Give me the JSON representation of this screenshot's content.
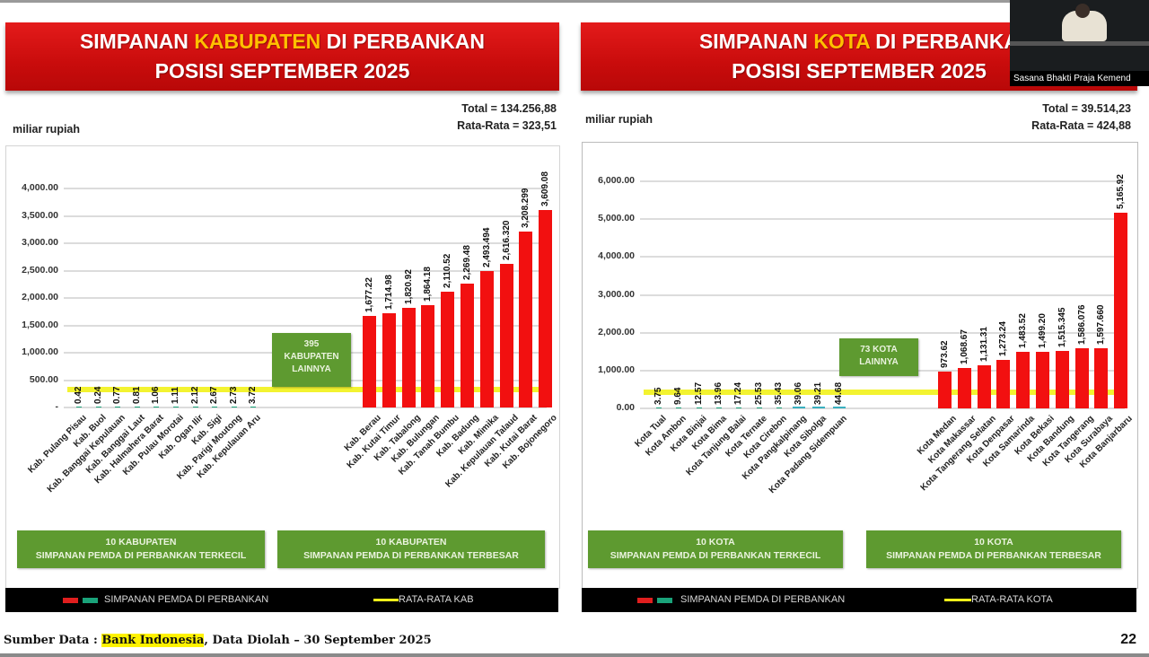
{
  "slide": {
    "page_number": "22",
    "footer": {
      "prefix": "Sumber Data : ",
      "source": "Bank Indonesia",
      "suffix": ", Data Diolah – 30 September 2025"
    },
    "webcam": {
      "caption": "Sasana Bhakti Praja Kemend"
    }
  },
  "left": {
    "title_pre": "SIMPANAN ",
    "title_hl": "KABUPATEN",
    "title_post": " DI PERBANKAN",
    "subtitle": "POSISI SEPTEMBER 2025",
    "total": "Total = 134.256,88",
    "average": "Rata-Rata = 323,51",
    "unit": "miliar rupiah",
    "middle_box": [
      "395",
      "KABUPATEN",
      "LAINNYA"
    ],
    "group_small": [
      "10 KABUPATEN",
      "SIMPANAN PEMDA DI PERBANKAN TERKECIL"
    ],
    "group_large": [
      "10 KABUPATEN",
      "SIMPANAN PEMDA DI PERBANKAN TERBESAR"
    ],
    "legend_series": "SIMPANAN PEMDA DI PERBANKAN",
    "legend_avg": "RATA-RATA KAB"
  },
  "right": {
    "title_pre": "SIMPANAN ",
    "title_hl": "KOTA",
    "title_post": " DI PERBANKA",
    "subtitle": "POSISI SEPTEMBER 2025",
    "total": "Total = 39.514,23",
    "average": "Rata-Rata = 424,88",
    "unit": "miliar rupiah",
    "middle_box": [
      "73 KOTA",
      "LAINNYA"
    ],
    "group_small": [
      "10 KOTA",
      "SIMPANAN PEMDA DI PERBANKAN TERKECIL"
    ],
    "group_large": [
      "10 KOTA",
      "SIMPANAN PEMDA DI PERBANKAN TERBESAR"
    ],
    "legend_series": "SIMPANAN PEMDA DI PERBANKAN",
    "legend_avg": "RATA-RATA KOTA"
  },
  "colors": {
    "banner_red": "#d41010",
    "title_highlight": "#ffc000",
    "bar_red": "#f21010",
    "bar_teal": "#1aa37a",
    "avg_yellow": "#f2f21a",
    "group_green": "#5e9a30",
    "legend_bg": "#000000"
  },
  "chart_data": [
    {
      "type": "bar",
      "title": "SIMPANAN KABUPATEN DI PERBANKAN POSISI SEPTEMBER 2025",
      "ylabel": "miliar rupiah",
      "ylim": [
        0,
        4000
      ],
      "yticks": [
        "",
        "500.00",
        "1,000.00",
        "1,500.00",
        "2,000.00",
        "2,500.00",
        "3,000.00",
        "3,500.00",
        "4,000.00"
      ],
      "grid": true,
      "legend": [
        "SIMPANAN PEMDA DI PERBANKAN",
        "RATA-RATA KAB"
      ],
      "legend_position": "bottom",
      "average_line": 323.51,
      "smallest": {
        "categories": [
          "Kab. Pulang Pisau",
          "Kab. Buol",
          "Kab. Banggai Kepulauan",
          "Kab. Banggai Laut",
          "Kab. Halmahera Barat",
          "Kab. Pulau Morotai",
          "Kab. Ogan Ilir",
          "Kab. Sigi",
          "Kab. Parigi Moutong",
          "Kab. Kepulauan Aru"
        ],
        "values": [
          0.42,
          0.24,
          0.77,
          0.81,
          1.06,
          1.11,
          2.12,
          2.67,
          2.73,
          3.72
        ],
        "labels": [
          "0.42",
          "0.24",
          "0.77",
          "0.81",
          "1.06",
          "1.11",
          "2.12",
          "2.67",
          "2.73",
          "3.72"
        ]
      },
      "largest": {
        "categories": [
          "Kab. Berau",
          "Kab. Kutai Timur",
          "Kab. Tabalong",
          "Kab. Bulungan",
          "Kab. Tanah Bumbu",
          "Kab. Badung",
          "Kab. Mimika",
          "Kab. Kepulauan Talaud",
          "Kab. Kutai Barat",
          "Kab. Bojonegoro"
        ],
        "values": [
          1677.22,
          1714.98,
          1820.92,
          1864.18,
          2110.52,
          2269.48,
          2493.494,
          2616.32,
          3208.299,
          3609.08
        ],
        "labels": [
          "1,677.22",
          "1,714.98",
          "1,820.92",
          "1,864.18",
          "2,110.52",
          "2,269.48",
          "2,493.494",
          "2,616.320",
          "3,208.299",
          "3,609.08"
        ]
      },
      "annotations": [
        "395 KABUPATEN LAINNYA",
        "Total = 134.256,88",
        "Rata-Rata = 323,51"
      ]
    },
    {
      "type": "bar",
      "title": "SIMPANAN KOTA DI PERBANKAN POSISI SEPTEMBER 2025",
      "ylabel": "miliar rupiah",
      "ylim": [
        0,
        6000
      ],
      "yticks": [
        "0.00",
        "1,000.00",
        "2,000.00",
        "3,000.00",
        "4,000.00",
        "5,000.00",
        "6,000.00"
      ],
      "grid": true,
      "legend": [
        "SIMPANAN PEMDA DI PERBANKAN",
        "RATA-RATA KOTA"
      ],
      "legend_position": "bottom",
      "average_line": 424.88,
      "smallest": {
        "categories": [
          "Kota Tual",
          "Kota Ambon",
          "Kota Binjai",
          "Kota Bima",
          "Kota Tanjung Balai",
          "Kota Ternate",
          "Kota Cirebon",
          "Kota Pangkalpinang",
          "Kota Sibolga",
          "Kota Padang Sidempuan"
        ],
        "values": [
          3.75,
          9.64,
          12.57,
          13.96,
          17.24,
          25.53,
          35.43,
          39.06,
          39.21,
          44.68
        ],
        "labels": [
          "3.75",
          "9.64",
          "12.57",
          "13.96",
          "17.24",
          "25.53",
          "35.43",
          "39.06",
          "39.21",
          "44.68"
        ]
      },
      "largest": {
        "categories": [
          "Kota Medan",
          "Kota Makassar",
          "Kota Tangerang Selatan",
          "Kota Denpasar",
          "Kota Samarinda",
          "Kota Bekasi",
          "Kota Bandung",
          "Kota Tangerang",
          "Kota Surabaya",
          "Kota Banjarbaru"
        ],
        "values": [
          973.62,
          1068.67,
          1131.31,
          1273.24,
          1483.52,
          1499.2,
          1515.345,
          1586.076,
          1597.66,
          5165.92
        ],
        "labels": [
          "973.62",
          "1,068.67",
          "1,131.31",
          "1,273.24",
          "1,483.52",
          "1,499.20",
          "1,515.345",
          "1,586.076",
          "1,597.660",
          "5,165.92"
        ]
      },
      "annotations": [
        "73 KOTA LAINNYA",
        "Total = 39.514,23",
        "Rata-Rata = 424,88"
      ]
    }
  ]
}
